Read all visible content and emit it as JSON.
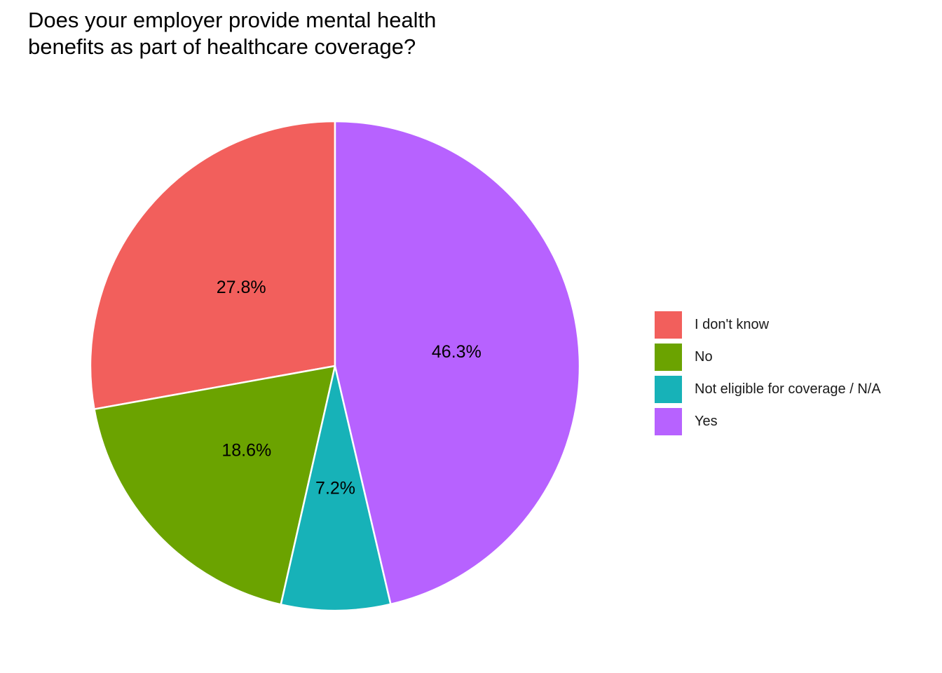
{
  "chart_data": {
    "type": "pie",
    "title": "Does your employer provide mental health benefits as part of healthcare coverage?",
    "title_lines": [
      "Does your employer provide mental health",
      "benefits as part of healthcare coverage?"
    ],
    "categories": [
      "I don't know",
      "No",
      "Not eligible for coverage / N/A",
      "Yes"
    ],
    "values": [
      27.8,
      18.6,
      7.2,
      46.3
    ],
    "labels": [
      "27.8%",
      "18.6%",
      "7.2%",
      "46.3%"
    ],
    "colors": [
      "#F25F5C",
      "#6BA300",
      "#17B2B8",
      "#B762FF"
    ],
    "legend_position": "right",
    "start_angle": "12 o'clock",
    "direction": "counterclockwise"
  }
}
